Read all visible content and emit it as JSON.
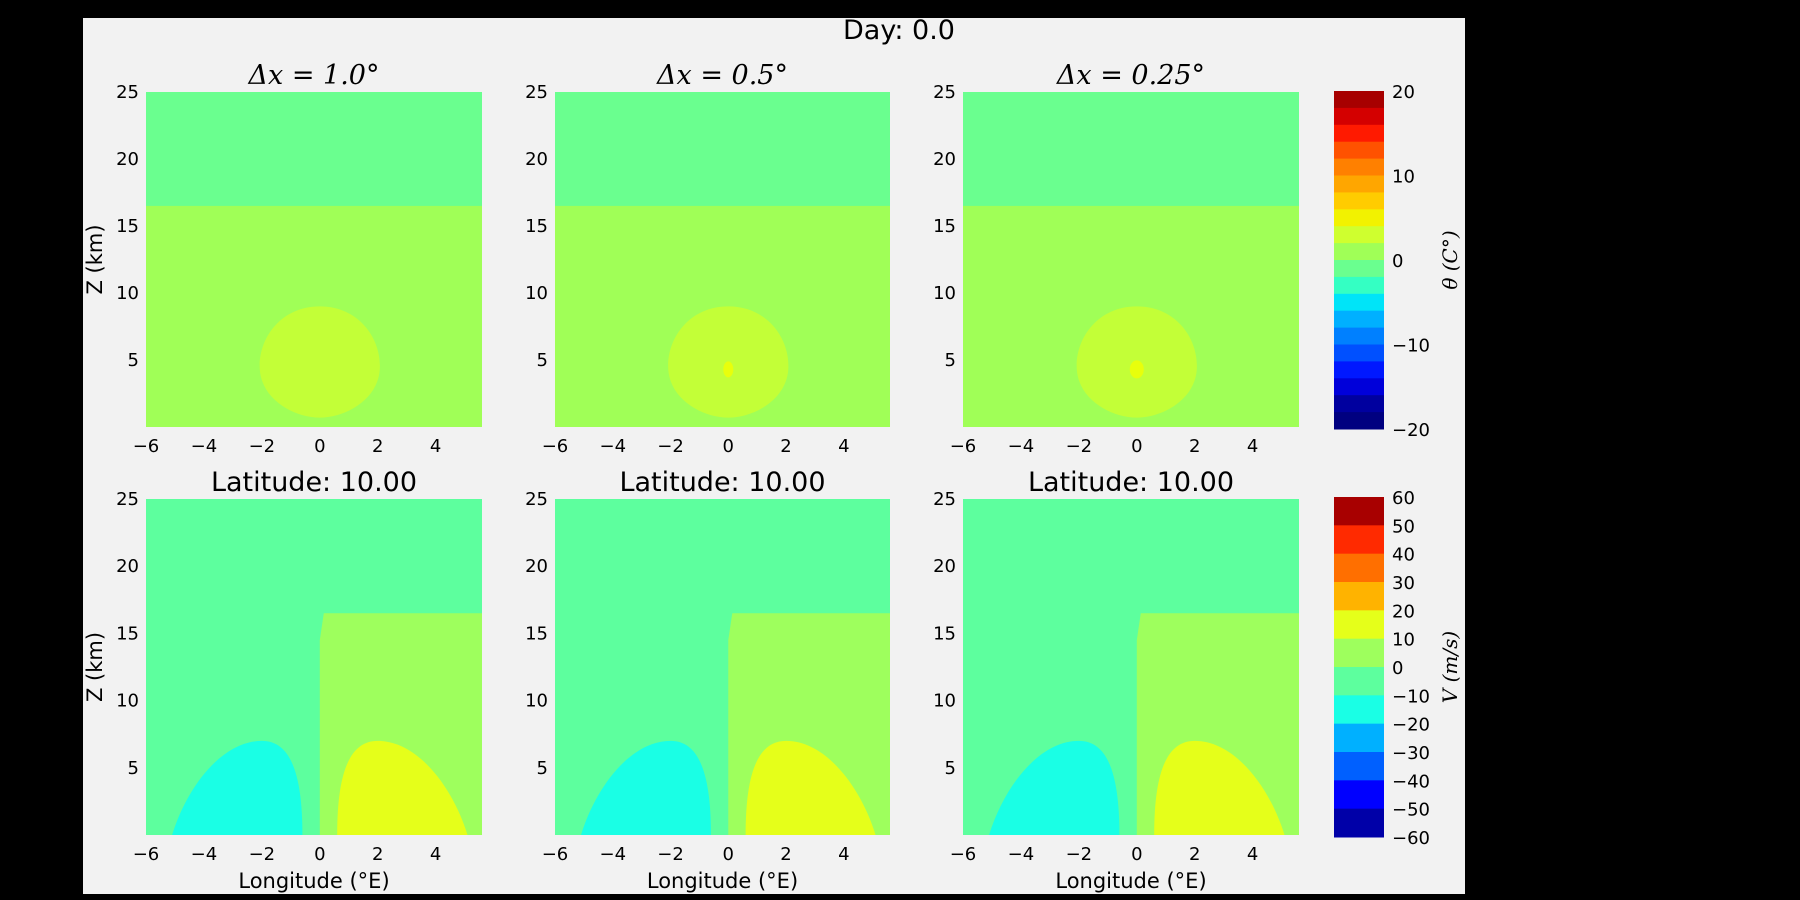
{
  "figure": {
    "suptitle": "Day: 0.0"
  },
  "chart_data": [
    {
      "type": "heatmap",
      "variable": "theta",
      "title": "Δx = 1.0°",
      "xlabel": "",
      "ylabel": "Z (km)",
      "xlim": [
        -6,
        6
      ],
      "ylim": [
        0,
        25
      ],
      "xticks": [
        -6,
        -4,
        -2,
        0,
        2,
        4
      ],
      "yticks": [
        5,
        10,
        15,
        20,
        25
      ],
      "regions": [
        {
          "level": "0 to 2.5",
          "desc": "background above tropopause",
          "z_range": [
            16.5,
            25
          ]
        },
        {
          "level": "2.5 to 5",
          "desc": "troposphere background",
          "z_range": [
            0,
            16.5
          ]
        },
        {
          "level": "5 to 7.5",
          "desc": "warm anomaly",
          "center_x": 0,
          "center_z": 4.5
        }
      ]
    },
    {
      "type": "heatmap",
      "variable": "theta",
      "title": "Δx = 0.5°",
      "xlabel": "",
      "ylabel": "",
      "xlim": [
        -6,
        6
      ],
      "ylim": [
        0,
        25
      ],
      "xticks": [
        -6,
        -4,
        -2,
        0,
        2,
        4
      ],
      "yticks": [
        5,
        10,
        15,
        20,
        25
      ],
      "regions": [
        {
          "level": "0 to 2.5",
          "z_range": [
            16.5,
            25
          ]
        },
        {
          "level": "2.5 to 5",
          "z_range": [
            0,
            16.5
          ]
        },
        {
          "level": "5 to 7.5",
          "center_x": 0,
          "center_z": 4.5
        },
        {
          "level": "7.5 to 10",
          "center_x": 0,
          "center_z": 4.3
        }
      ]
    },
    {
      "type": "heatmap",
      "variable": "theta",
      "title": "Δx = 0.25°",
      "xlabel": "",
      "ylabel": "",
      "xlim": [
        -6,
        6
      ],
      "ylim": [
        0,
        25
      ],
      "xticks": [
        -6,
        -4,
        -2,
        0,
        2,
        4
      ],
      "yticks": [
        5,
        10,
        15,
        20,
        25
      ],
      "regions": [
        {
          "level": "0 to 2.5",
          "z_range": [
            16.5,
            25
          ]
        },
        {
          "level": "2.5 to 5",
          "z_range": [
            0,
            16.5
          ]
        },
        {
          "level": "5 to 7.5",
          "center_x": 0,
          "center_z": 4.5
        },
        {
          "level": "7.5 to 10",
          "center_x": 0,
          "center_z": 4.3
        }
      ]
    },
    {
      "type": "heatmap",
      "variable": "V",
      "title": "Latitude: 10.00",
      "xlabel": "Longitude (°E)",
      "ylabel": "Z (km)",
      "xlim": [
        -6,
        6
      ],
      "ylim": [
        0,
        25
      ],
      "xticks": [
        -6,
        -4,
        -2,
        0,
        2,
        4
      ],
      "yticks": [
        5,
        10,
        15,
        20,
        25
      ],
      "regions": [
        {
          "level": "-10 to 0",
          "desc": "background"
        },
        {
          "level": "0 to 10",
          "x_range": [
            0,
            6
          ],
          "z_range": [
            0,
            16.5
          ]
        },
        {
          "level": "-20 to -10",
          "center_x": -2,
          "top_z": 7
        },
        {
          "level": "10 to 20",
          "center_x": 2,
          "top_z": 7
        }
      ]
    },
    {
      "type": "heatmap",
      "variable": "V",
      "title": "Latitude: 10.00",
      "xlabel": "Longitude (°E)",
      "ylabel": "",
      "xlim": [
        -6,
        6
      ],
      "ylim": [
        0,
        25
      ],
      "xticks": [
        -6,
        -4,
        -2,
        0,
        2,
        4
      ],
      "yticks": [
        5,
        10,
        15,
        20,
        25
      ],
      "regions": [
        {
          "level": "-10 to 0"
        },
        {
          "level": "0 to 10",
          "x_range": [
            0,
            6
          ],
          "z_range": [
            0,
            16.5
          ]
        },
        {
          "level": "-20 to -10",
          "center_x": -2,
          "top_z": 7
        },
        {
          "level": "10 to 20",
          "center_x": 2,
          "top_z": 7
        }
      ]
    },
    {
      "type": "heatmap",
      "variable": "V",
      "title": "Latitude: 10.00",
      "xlabel": "Longitude (°E)",
      "ylabel": "",
      "xlim": [
        -6,
        6
      ],
      "ylim": [
        0,
        25
      ],
      "xticks": [
        -6,
        -4,
        -2,
        0,
        2,
        4
      ],
      "yticks": [
        5,
        10,
        15,
        20,
        25
      ],
      "regions": [
        {
          "level": "-10 to 0"
        },
        {
          "level": "0 to 10",
          "x_range": [
            0,
            6
          ],
          "z_range": [
            0,
            16.5
          ]
        },
        {
          "level": "-20 to -10",
          "center_x": -2,
          "top_z": 7
        },
        {
          "level": "10 to 20",
          "center_x": 2,
          "top_z": 7
        }
      ]
    }
  ],
  "colorbars": [
    {
      "label": "θ (C°)",
      "ticks": [
        20,
        10,
        0,
        -10,
        -20
      ],
      "tick_labels": [
        "20",
        "10",
        "0",
        "−10",
        "−20"
      ],
      "colors": [
        "#a70000",
        "#d40000",
        "#ff1a00",
        "#ff5200",
        "#ff8000",
        "#ffa600",
        "#ffcc00",
        "#f2f200",
        "#cfff2f",
        "#a0ff57",
        "#6aff8f",
        "#34ffc3",
        "#00e4f8",
        "#00b0ff",
        "#0080ff",
        "#0050ff",
        "#0018ff",
        "#0000da",
        "#00009f",
        "#000080"
      ]
    },
    {
      "label": "V (m/s)",
      "ticks": [
        60,
        50,
        40,
        30,
        20,
        10,
        0,
        -10,
        -20,
        -30,
        -40,
        -50,
        -60
      ],
      "tick_labels": [
        "60",
        "50",
        "40",
        "30",
        "20",
        "10",
        "0",
        "−10",
        "−20",
        "−30",
        "−40",
        "−50",
        "−60"
      ],
      "colors": [
        "#a80000",
        "#ff2a00",
        "#ff6f00",
        "#ffb300",
        "#e5ff1a",
        "#9eff5d",
        "#5dff9e",
        "#1affe5",
        "#00b0ff",
        "#0060ff",
        "#0000ff",
        "#0000a8"
      ]
    }
  ],
  "palette": {
    "theta_strat": "#6aff8f",
    "theta_trop": "#a0ff57",
    "theta_warm": "#c3ff37",
    "theta_core": "#e8ff0c",
    "v_bg": "#5dff9e",
    "v_pos": "#9eff5d",
    "v_neg": "#1affe5",
    "v_strong_pos": "#e5ff1a"
  }
}
